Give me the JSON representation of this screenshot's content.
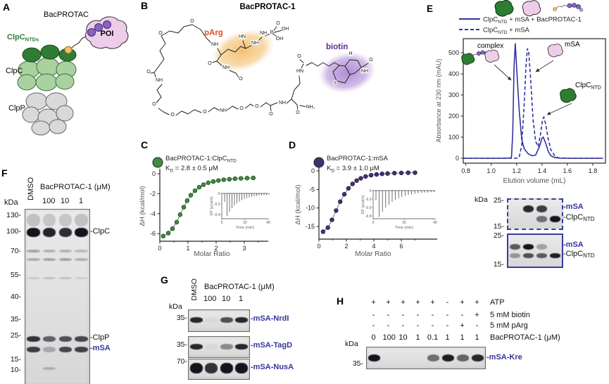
{
  "colors": {
    "navy": "#32329e",
    "indigo": "#35359b",
    "green_dark": "#2e7d32",
    "green_body": "#a9d2a0",
    "gray": "#d9d9d9",
    "pink": "#eecdea",
    "purple_ball": "#8a63c4",
    "orange_ball": "#f2c063",
    "parg": "#e0501e",
    "biotin": "#5b2a8e"
  },
  "panel_a": {
    "label": "A",
    "bacprotac": "BacPROTAC",
    "clpc_ntds": {
      "base": "ClpC",
      "sub": "NTDs"
    },
    "clpc": "ClpC",
    "clpp": "ClpP",
    "poi": "POI"
  },
  "panel_b": {
    "label": "B",
    "title": "BacPROTAC-1",
    "parg": "pArg",
    "biotin": "biotin",
    "atoms": [
      [
        "O",
        33,
        49
      ],
      [
        "O",
        78,
        32
      ],
      [
        "NH",
        110,
        65
      ],
      [
        "O",
        103,
        92
      ],
      [
        "NH",
        126,
        98
      ],
      [
        "O",
        147,
        114
      ],
      [
        "HN",
        149,
        54
      ],
      [
        "NH",
        167,
        63
      ],
      [
        "NH",
        179,
        49
      ],
      [
        "O",
        200,
        35
      ],
      [
        "P",
        191,
        48
      ],
      [
        "OH",
        210,
        43
      ],
      [
        "OH",
        202,
        57
      ],
      [
        "O",
        16,
        104
      ],
      [
        "NH",
        31,
        116
      ],
      [
        "O",
        24,
        150
      ],
      [
        "O",
        50,
        165
      ],
      [
        "O",
        96,
        161
      ],
      [
        "NH",
        122,
        159
      ],
      [
        "O",
        148,
        156
      ],
      [
        "O",
        170,
        153
      ],
      [
        "O",
        190,
        164
      ],
      [
        "NH",
        206,
        148
      ],
      [
        "O",
        228,
        162
      ],
      [
        "NH₂",
        246,
        154
      ],
      [
        "HN",
        231,
        103
      ],
      [
        "O",
        230,
        82
      ],
      [
        "S",
        281,
        120
      ],
      [
        "H",
        303,
        78
      ],
      [
        "NH",
        323,
        103
      ],
      [
        "O",
        332,
        87
      ]
    ]
  },
  "panel_c": {
    "label": "C"
  },
  "panel_d": {
    "label": "D"
  },
  "panel_e": {
    "label": "E",
    "legend": [
      {
        "pre": "ClpC",
        "sub": "NTD",
        "post": " + mSA + BacPROTAC-1",
        "style": "solid"
      },
      {
        "pre": "ClpC",
        "sub": "NTD",
        "post": " + mSA",
        "style": "dashed"
      }
    ],
    "annotations": {
      "complex": "complex",
      "msa": "mSA",
      "clpc": {
        "base": "ClpC",
        "sub": "NTD"
      }
    },
    "gels": {
      "kda": "kDa",
      "strips": [
        {
          "border": "dashed",
          "markers": [
            "25",
            "15"
          ],
          "rows": [
            {
              "label": "mSA",
              "indigo": true,
              "y": 8,
              "h": 10,
              "lanes": [
                0,
                0.9,
                0.8,
                0
              ]
            },
            {
              "base": "ClpC",
              "sub": "NTD",
              "y": 23,
              "h": 9,
              "lanes": [
                0,
                0,
                0.55,
                1
              ]
            }
          ]
        },
        {
          "border": "solid",
          "markers": [
            "25",
            "15"
          ],
          "rows": [
            {
              "label": "mSA",
              "indigo": true,
              "y": 13,
              "h": 8,
              "lanes": [
                0.65,
                1,
                0.3,
                0
              ]
            },
            {
              "base": "ClpC",
              "sub": "NTD",
              "y": 26,
              "h": 7,
              "lanes": [
                0.35,
                0.7,
                0.65,
                0.95
              ]
            }
          ]
        }
      ]
    }
  },
  "panel_f": {
    "label": "F",
    "dmso": "DMSO",
    "header": "BacPROTAC-1 (μM)",
    "lanes": [
      "100",
      "10",
      "1"
    ],
    "kda": "kDa",
    "ladder": [
      "130",
      "100",
      "70",
      "55",
      "40",
      "35",
      "25",
      "15",
      "10"
    ],
    "bands": [
      {
        "y": 6,
        "h": 18,
        "lanes": [
          0.18,
          0.16,
          0.16,
          0.18
        ]
      },
      {
        "y": 26,
        "h": 13,
        "label": "ClpC",
        "lanes": [
          1,
          0.92,
          0.88,
          1
        ]
      },
      {
        "y": 57,
        "h": 4,
        "lanes": [
          0.3,
          0.24,
          0.24,
          0.2
        ]
      },
      {
        "y": 69,
        "h": 4,
        "lanes": [
          0.26,
          0.3,
          0.3,
          0.24
        ]
      },
      {
        "y": 96,
        "h": 3,
        "lanes": [
          0.12,
          0.16,
          0.16,
          0.1
        ]
      },
      {
        "y": 180,
        "h": 8,
        "label": "ClpP",
        "lanes": [
          0.85,
          0.62,
          0.7,
          0.75
        ]
      },
      {
        "y": 195,
        "h": 8,
        "label": "mSA",
        "indigo": true,
        "lanes": [
          0.8,
          0.25,
          0.75,
          0.78
        ]
      },
      {
        "y": 224,
        "h": 4,
        "lanes": [
          0,
          0.22,
          0,
          0
        ]
      }
    ]
  },
  "panel_g": {
    "label": "G",
    "dmso": "DMSO",
    "header": "BacPROTAC-1 (μM)",
    "lanes": [
      "100",
      "10",
      "1"
    ],
    "kda": "kDa",
    "strips": [
      {
        "marker": "35",
        "band_label": "mSA-NrdI",
        "y": 10,
        "h": 8,
        "lanes": [
          0.9,
          0.04,
          0.7,
          0.9
        ]
      },
      {
        "marker": "35",
        "band_label": "mSA-TagD",
        "y": 10,
        "h": 8,
        "lanes": [
          0.9,
          0.04,
          0.42,
          0.9
        ]
      },
      {
        "marker": "70",
        "band_label": "mSA-NusA",
        "y": 5,
        "h": 15,
        "lanes": [
          1,
          0.85,
          1,
          1
        ]
      }
    ]
  },
  "panel_h": {
    "label": "H",
    "kda": "kDa",
    "marker": "35",
    "band_label": "mSA-Kre",
    "rows": [
      {
        "label": "ATP",
        "values": [
          "+",
          "+",
          "+",
          "+",
          "+",
          "-",
          "+",
          "+"
        ]
      },
      {
        "label": "5 mM biotin",
        "values": [
          "-",
          "-",
          "-",
          "-",
          "-",
          "-",
          "-",
          "+"
        ]
      },
      {
        "label": "5 mM pArg",
        "values": [
          "-",
          "-",
          "-",
          "-",
          "-",
          "-",
          "+",
          "-"
        ]
      },
      {
        "label": "BacPROTAC-1 (μM)",
        "values": [
          "0",
          "100",
          "10",
          "1",
          "0.1",
          "1",
          "1",
          "1"
        ]
      }
    ],
    "band_lanes": [
      1,
      0,
      0,
      0,
      0.55,
      0.95,
      0.6,
      0.9
    ]
  },
  "chart_data": [
    {
      "id": "C",
      "type": "scatter",
      "title_pre": "BacPROTAC-1:ClpC",
      "title_sub": "NTD",
      "kd_pre": "K",
      "kd_sub": "D",
      "kd_post": " = 2.8 ± 0.5 μM",
      "xlabel": "Molar Ratio",
      "ylabel": "ΔH (kcal/mol)",
      "xticks": [
        0,
        1,
        2,
        3
      ],
      "yticks": [
        0,
        -2,
        -4,
        -6
      ],
      "xlim": [
        0,
        3.6
      ],
      "ylim": [
        -6.8,
        0.3
      ],
      "marker_color": "#3e8e41",
      "marker_edge": "#16450f",
      "x": [
        0.12,
        0.3,
        0.45,
        0.6,
        0.72,
        0.85,
        0.97,
        1.1,
        1.25,
        1.4,
        1.55,
        1.72,
        1.9,
        2.08,
        2.27,
        2.47,
        2.67,
        2.88,
        3.1,
        3.32
      ],
      "y": [
        -6.25,
        -5.95,
        -5.5,
        -4.85,
        -4.1,
        -3.35,
        -2.7,
        -2.15,
        -1.7,
        -1.35,
        -1.1,
        -0.9,
        -0.78,
        -0.68,
        -0.6,
        -0.55,
        -0.5,
        -0.47,
        -0.44,
        -0.42
      ],
      "inset": {
        "ylabel": "DP (μcal/s)",
        "xlabel": "Time (min)",
        "yticks": [
          "0",
          "-0.2",
          "-0.4"
        ],
        "xticks": [
          "0",
          "20",
          "40"
        ],
        "spikes": 19
      }
    },
    {
      "id": "D",
      "type": "scatter",
      "title_pre": "BacPROTAC-1:mSA",
      "title_sub": "",
      "kd_pre": "K",
      "kd_sub": "D",
      "kd_post": " = 3.9 ± 1.0 μM",
      "xlabel": "Molar Ratio",
      "ylabel": "ΔH (kcal/mol)",
      "xticks": [
        0,
        2,
        4,
        6
      ],
      "yticks": [
        0,
        -5,
        -10,
        -15
      ],
      "xlim": [
        0,
        7.5
      ],
      "ylim": [
        -18,
        0.5
      ],
      "marker_color": "#443070",
      "marker_edge": "#241645",
      "x": [
        0.3,
        0.65,
        0.95,
        1.25,
        1.55,
        1.85,
        2.15,
        2.45,
        2.75,
        3.05,
        3.4,
        3.8,
        4.2,
        4.6,
        5.0,
        5.5,
        6.0,
        6.5,
        7.0
      ],
      "y": [
        -16.4,
        -15.3,
        -13.2,
        -10.7,
        -8.3,
        -6.3,
        -4.7,
        -3.5,
        -2.6,
        -2.0,
        -1.5,
        -1.15,
        -0.95,
        -0.8,
        -0.7,
        -0.6,
        -0.55,
        -0.5,
        -0.48
      ],
      "inset": {
        "ylabel": "DP (μcal/s)",
        "xlabel": "Time (min)",
        "yticks": [
          "0",
          "-0.3",
          "-0.6",
          "-0.9"
        ],
        "xticks": [
          "0",
          "20",
          "40"
        ],
        "spikes": 19
      }
    },
    {
      "id": "E",
      "type": "line",
      "xlabel": "Elution volume (mL)",
      "ylabel": "Absorbance at 230 nm (mAU)",
      "xticks": [
        "0.8",
        "1.0",
        "1.2",
        "1.4",
        "1.6",
        "1.8"
      ],
      "yticks": [
        0,
        100,
        200,
        300,
        400,
        500
      ],
      "xlim": [
        0.78,
        1.9
      ],
      "ylim": [
        0,
        560
      ],
      "line_color": "#32329e",
      "series": [
        {
          "name": "ClpCNTD + mSA + BacPROTAC-1",
          "style": "solid",
          "points": [
            [
              0.78,
              0
            ],
            [
              1.0,
              0
            ],
            [
              1.1,
              0
            ],
            [
              1.15,
              1
            ],
            [
              1.16,
              5
            ],
            [
              1.17,
              120
            ],
            [
              1.18,
              430
            ],
            [
              1.19,
              545
            ],
            [
              1.2,
              430
            ],
            [
              1.22,
              230
            ],
            [
              1.24,
              90
            ],
            [
              1.26,
              45
            ],
            [
              1.29,
              22
            ],
            [
              1.32,
              12
            ],
            [
              1.35,
              15
            ],
            [
              1.38,
              55
            ],
            [
              1.4,
              95
            ],
            [
              1.41,
              100
            ],
            [
              1.43,
              70
            ],
            [
              1.45,
              32
            ],
            [
              1.47,
              12
            ],
            [
              1.5,
              3
            ],
            [
              1.55,
              0
            ],
            [
              1.7,
              0
            ],
            [
              1.88,
              0
            ]
          ]
        },
        {
          "name": "ClpCNTD + mSA",
          "style": "dashed",
          "points": [
            [
              0.78,
              0
            ],
            [
              1.1,
              0
            ],
            [
              1.2,
              0
            ],
            [
              1.22,
              5
            ],
            [
              1.24,
              60
            ],
            [
              1.26,
              260
            ],
            [
              1.275,
              450
            ],
            [
              1.285,
              520
            ],
            [
              1.295,
              505
            ],
            [
              1.31,
              380
            ],
            [
              1.33,
              180
            ],
            [
              1.35,
              80
            ],
            [
              1.37,
              55
            ],
            [
              1.39,
              120
            ],
            [
              1.405,
              185
            ],
            [
              1.415,
              195
            ],
            [
              1.43,
              160
            ],
            [
              1.45,
              90
            ],
            [
              1.47,
              40
            ],
            [
              1.5,
              12
            ],
            [
              1.53,
              2
            ],
            [
              1.6,
              0
            ],
            [
              1.88,
              0
            ]
          ]
        }
      ]
    }
  ]
}
